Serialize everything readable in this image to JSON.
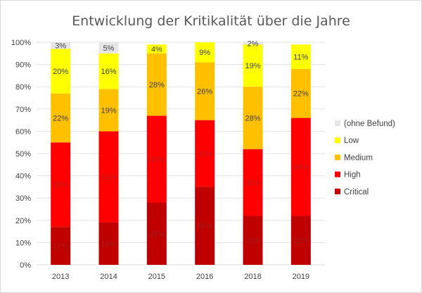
{
  "chart_data": {
    "type": "bar",
    "stacked": true,
    "percent_stacked": true,
    "title": "Entwicklung der Kritikalität über die Jahre",
    "xlabel": "",
    "ylabel": "",
    "ylim": [
      0,
      100
    ],
    "yticks": [
      "0%",
      "10%",
      "20%",
      "30%",
      "40%",
      "50%",
      "60%",
      "70%",
      "80%",
      "90%",
      "100%"
    ],
    "categories": [
      "2013",
      "2014",
      "2015",
      "2016",
      "2018",
      "2019"
    ],
    "series": [
      {
        "name": "Critical",
        "color": "#c00000",
        "labelColor": "#a51c1c",
        "values": [
          17,
          19,
          28,
          35,
          22,
          22
        ]
      },
      {
        "name": "High",
        "color": "#ff0000",
        "labelColor": "#b71c1c",
        "values": [
          38,
          41,
          39,
          30,
          30,
          44
        ]
      },
      {
        "name": "Medium",
        "color": "#ffc000",
        "labelColor": "#404040",
        "values": [
          22,
          19,
          28,
          26,
          28,
          22
        ]
      },
      {
        "name": "Low",
        "color": "#ffff00",
        "labelColor": "#404040",
        "values": [
          20,
          16,
          4,
          9,
          19,
          11
        ]
      },
      {
        "name": "(ohne Befund)",
        "color": "#e7e6e6",
        "labelColor": "#404040",
        "values": [
          3,
          5,
          null,
          null,
          2,
          null
        ]
      }
    ],
    "legend": {
      "position": "right",
      "order": [
        "(ohne Befund)",
        "Low",
        "Medium",
        "High",
        "Critical"
      ]
    },
    "grid": true,
    "unit_suffix": "%"
  }
}
